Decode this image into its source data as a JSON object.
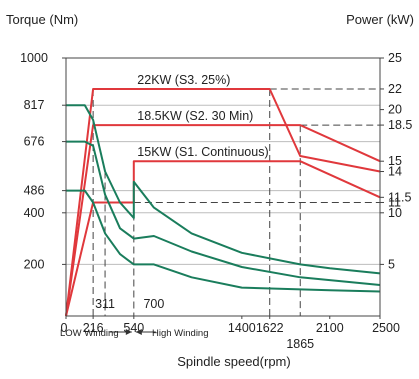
{
  "chart_data": {
    "type": "line",
    "title": "",
    "xlabel": "Spindle speed(rpm)",
    "ylabel_left": "Torque (Nm)",
    "ylabel_right": "Power (kW)",
    "xlim": [
      0,
      2500
    ],
    "ylim_left": [
      0,
      1000
    ],
    "ylim_right": [
      0,
      25
    ],
    "x_ticks": [
      {
        "v": 0,
        "label": "0",
        "row": 0
      },
      {
        "v": 216,
        "label": "216",
        "row": 0
      },
      {
        "v": 311,
        "label": "311",
        "row": -1
      },
      {
        "v": 540,
        "label": "540",
        "row": 0
      },
      {
        "v": 700,
        "label": "700",
        "row": -1
      },
      {
        "v": 1400,
        "label": "1400",
        "row": 0
      },
      {
        "v": 1622,
        "label": "1622",
        "row": 0
      },
      {
        "v": 1865,
        "label": "1865",
        "row": 1
      },
      {
        "v": 2100,
        "label": "2100",
        "row": 0
      },
      {
        "v": 2500,
        "label": "2500",
        "row": 0
      }
    ],
    "left_ticks": [
      {
        "v": 1000,
        "label": "1000"
      },
      {
        "v": 817,
        "label": "817"
      },
      {
        "v": 676,
        "label": "676"
      },
      {
        "v": 486,
        "label": "486"
      },
      {
        "v": 400,
        "label": "400"
      },
      {
        "v": 200,
        "label": "200"
      }
    ],
    "right_ticks": [
      {
        "v": 25,
        "label": "25"
      },
      {
        "v": 22,
        "label": "22"
      },
      {
        "v": 20,
        "label": "20"
      },
      {
        "v": 18.5,
        "label": "18.5"
      },
      {
        "v": 15,
        "label": "15"
      },
      {
        "v": 14,
        "label": "14"
      },
      {
        "v": 11.5,
        "label": "11.5"
      },
      {
        "v": 11,
        "label": "11"
      },
      {
        "v": 10,
        "label": "10"
      },
      {
        "v": 5,
        "label": "5"
      }
    ],
    "winding_labels": {
      "low": "LOW Winding",
      "high": "High Winding"
    },
    "series": [
      {
        "axis": "right",
        "color": "#e0383c",
        "label": "22KW (S3. 25%)",
        "label_at": [
          520,
          22
        ],
        "points": [
          [
            0,
            0
          ],
          [
            216,
            22
          ],
          [
            1622,
            22
          ],
          [
            1865,
            15.5
          ],
          [
            2500,
            14
          ]
        ]
      },
      {
        "axis": "right",
        "color": "#e0383c",
        "label": "18.5KW (S2. 30 Min)",
        "label_at": [
          520,
          18.5
        ],
        "points": [
          [
            0,
            0
          ],
          [
            216,
            18.5
          ],
          [
            1865,
            18.5
          ],
          [
            2500,
            15
          ]
        ]
      },
      {
        "axis": "right",
        "color": "#e0383c",
        "label": "15KW (S1. Continuous)",
        "label_at": [
          520,
          15
        ],
        "points": [
          [
            0,
            0
          ],
          [
            216,
            11
          ],
          [
            540,
            11
          ],
          [
            540,
            15
          ],
          [
            1865,
            15
          ],
          [
            2500,
            11.5
          ]
        ]
      },
      {
        "axis": "left",
        "color": "#1a7d5c",
        "points": [
          [
            0,
            817
          ],
          [
            150,
            817
          ],
          [
            216,
            760
          ],
          [
            311,
            560
          ],
          [
            430,
            440
          ],
          [
            540,
            380
          ],
          [
            540,
            520
          ],
          [
            700,
            420
          ],
          [
            1000,
            320
          ],
          [
            1400,
            245
          ],
          [
            1865,
            200
          ],
          [
            2100,
            185
          ],
          [
            2500,
            165
          ]
        ]
      },
      {
        "axis": "left",
        "color": "#1a7d5c",
        "points": [
          [
            0,
            676
          ],
          [
            150,
            676
          ],
          [
            216,
            660
          ],
          [
            311,
            470
          ],
          [
            430,
            340
          ],
          [
            540,
            300
          ],
          [
            700,
            310
          ],
          [
            1000,
            250
          ],
          [
            1400,
            190
          ],
          [
            1865,
            150
          ],
          [
            2500,
            120
          ]
        ]
      },
      {
        "axis": "left",
        "color": "#1a7d5c",
        "points": [
          [
            0,
            486
          ],
          [
            150,
            486
          ],
          [
            216,
            440
          ],
          [
            311,
            320
          ],
          [
            430,
            240
          ],
          [
            540,
            200
          ],
          [
            700,
            200
          ],
          [
            1000,
            150
          ],
          [
            1400,
            110
          ],
          [
            2100,
            100
          ],
          [
            2500,
            95
          ]
        ]
      }
    ],
    "reference_lines": [
      {
        "type": "v",
        "x": 216,
        "y0": 22,
        "axis": "right"
      },
      {
        "type": "v",
        "x": 311,
        "y0": 560,
        "axis": "left"
      },
      {
        "type": "v",
        "x": 540,
        "y0": 11,
        "axis": "right"
      },
      {
        "type": "v",
        "x": 1622,
        "y0": 22,
        "axis": "right"
      },
      {
        "type": "v",
        "x": 1865,
        "y0": 18.5,
        "axis": "right"
      },
      {
        "type": "h",
        "y": 22,
        "x0": 1622,
        "axis": "right"
      },
      {
        "type": "h",
        "y": 18.5,
        "x0": 1865,
        "axis": "right"
      },
      {
        "type": "h",
        "y": 11,
        "x0": 540,
        "axis": "right"
      }
    ]
  }
}
